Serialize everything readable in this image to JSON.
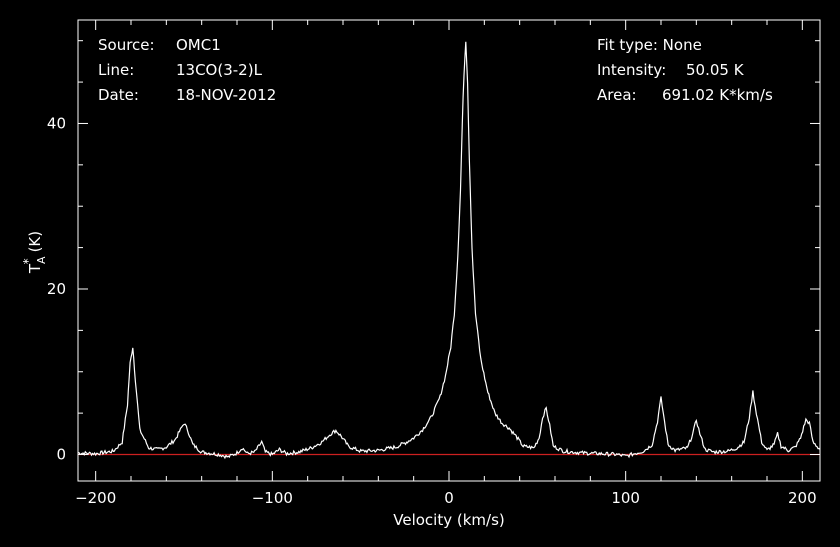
{
  "header": {
    "source_label": "Source:",
    "source_value": "OMC1",
    "line_label": "Line:",
    "line_value": "13CO(3-2)L",
    "date_label": "Date:",
    "date_value": "18-NOV-2012",
    "fit_type": "Fit type: None",
    "intensity_label": "Intensity:",
    "intensity_value": "50.05 K",
    "area_label": "Area:",
    "area_value": "691.02 K*km/s"
  },
  "colors": {
    "background": "#000000",
    "foreground": "#ffffff",
    "baseline": "#cc2020"
  },
  "chart_data": {
    "type": "line",
    "title": "",
    "xlabel": "Velocity (km/s)",
    "ylabel_main": "T",
    "ylabel_star": "*",
    "ylabel_sub": "A",
    "ylabel_unit": "(K)",
    "xlim": [
      -210,
      210
    ],
    "ylim": [
      -3.2,
      52.5
    ],
    "xticks": [
      -200,
      -100,
      0,
      100,
      200
    ],
    "yticks": [
      0,
      20,
      40
    ],
    "grid": false,
    "baseline_y": 0,
    "series": [
      {
        "points": [
          [
            -210,
            0.2
          ],
          [
            -200,
            0.1
          ],
          [
            -190,
            0.4
          ],
          [
            -185,
            1.5
          ],
          [
            -182,
            6.0
          ],
          [
            -180.5,
            11.0
          ],
          [
            -179,
            13.0
          ],
          [
            -177.5,
            9.0
          ],
          [
            -175,
            3.0
          ],
          [
            -170,
            0.8
          ],
          [
            -165,
            0.6
          ],
          [
            -160,
            0.9
          ],
          [
            -155,
            1.8
          ],
          [
            -152,
            3.0
          ],
          [
            -150,
            3.8
          ],
          [
            -148,
            3.0
          ],
          [
            -145,
            1.2
          ],
          [
            -140,
            0.3
          ],
          [
            -130,
            0.0
          ],
          [
            -125,
            -0.3
          ],
          [
            -120,
            0.2
          ],
          [
            -117,
            0.8
          ],
          [
            -114,
            0.1
          ],
          [
            -110,
            0.3
          ],
          [
            -106,
            1.5
          ],
          [
            -104,
            0.3
          ],
          [
            -100,
            0.0
          ],
          [
            -96,
            0.6
          ],
          [
            -92,
            0.1
          ],
          [
            -85,
            0.3
          ],
          [
            -78,
            0.8
          ],
          [
            -72,
            1.5
          ],
          [
            -67,
            2.5
          ],
          [
            -64,
            2.9
          ],
          [
            -61,
            2.2
          ],
          [
            -57,
            1.0
          ],
          [
            -50,
            0.4
          ],
          [
            -40,
            0.5
          ],
          [
            -30,
            0.9
          ],
          [
            -24,
            1.5
          ],
          [
            -20,
            2.0
          ],
          [
            -15,
            3.0
          ],
          [
            -10,
            4.5
          ],
          [
            -5,
            7.0
          ],
          [
            -2,
            9.5
          ],
          [
            1,
            13.0
          ],
          [
            3,
            17.0
          ],
          [
            5,
            24.0
          ],
          [
            6.5,
            32.0
          ],
          [
            7.5,
            40.0
          ],
          [
            8.5,
            46.0
          ],
          [
            9.5,
            50.05
          ],
          [
            10.5,
            45.0
          ],
          [
            11.5,
            36.0
          ],
          [
            13,
            25.0
          ],
          [
            15,
            17.0
          ],
          [
            18,
            11.5
          ],
          [
            22,
            7.5
          ],
          [
            26,
            5.0
          ],
          [
            30,
            3.8
          ],
          [
            34,
            3.2
          ],
          [
            38,
            2.2
          ],
          [
            42,
            1.0
          ],
          [
            48,
            0.8
          ],
          [
            51,
            2.0
          ],
          [
            53,
            4.5
          ],
          [
            55,
            5.6
          ],
          [
            57,
            3.5
          ],
          [
            59,
            1.0
          ],
          [
            65,
            0.4
          ],
          [
            75,
            0.2
          ],
          [
            85,
            0.1
          ],
          [
            95,
            0.0
          ],
          [
            100,
            -0.2
          ],
          [
            105,
            0.1
          ],
          [
            110,
            0.4
          ],
          [
            115,
            1.2
          ],
          [
            118,
            4.0
          ],
          [
            120,
            6.8
          ],
          [
            122,
            4.0
          ],
          [
            124,
            1.2
          ],
          [
            128,
            0.5
          ],
          [
            135,
            0.8
          ],
          [
            138,
            2.5
          ],
          [
            140,
            4.2
          ],
          [
            142,
            2.5
          ],
          [
            145,
            0.6
          ],
          [
            150,
            0.3
          ],
          [
            158,
            0.4
          ],
          [
            163,
            0.8
          ],
          [
            167,
            1.5
          ],
          [
            170,
            4.5
          ],
          [
            172,
            7.6
          ],
          [
            174,
            5.0
          ],
          [
            177,
            1.5
          ],
          [
            180,
            0.5
          ],
          [
            184,
            1.2
          ],
          [
            186,
            2.5
          ],
          [
            188,
            1.0
          ],
          [
            192,
            0.5
          ],
          [
            196,
            0.9
          ],
          [
            199,
            2.0
          ],
          [
            202,
            4.2
          ],
          [
            204,
            3.8
          ],
          [
            206,
            1.5
          ],
          [
            210,
            0.6
          ]
        ]
      }
    ]
  }
}
